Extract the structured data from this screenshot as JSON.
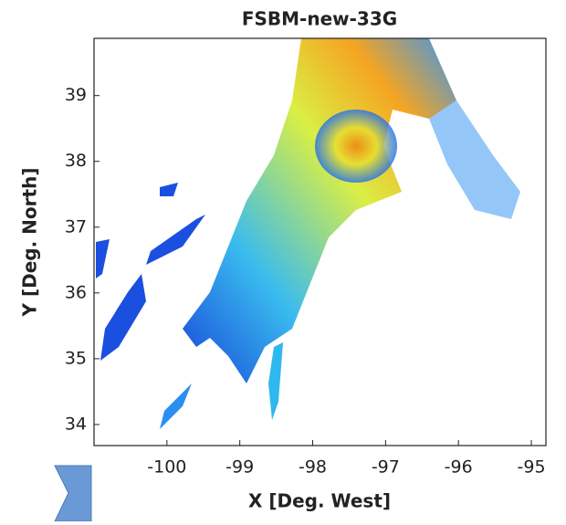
{
  "chart_data": {
    "type": "map",
    "title": "FSBM-new-33G",
    "x_label": "X [Deg. West]",
    "y_label": "Y [Deg. North]",
    "xlim": [
      -101,
      -94.8
    ],
    "xticks": [
      -100,
      -99,
      -98,
      -97,
      -96,
      -95
    ],
    "ylim": [
      33.68,
      39.87
    ],
    "yticks": [
      34,
      35,
      36,
      37,
      38,
      39
    ]
  }
}
